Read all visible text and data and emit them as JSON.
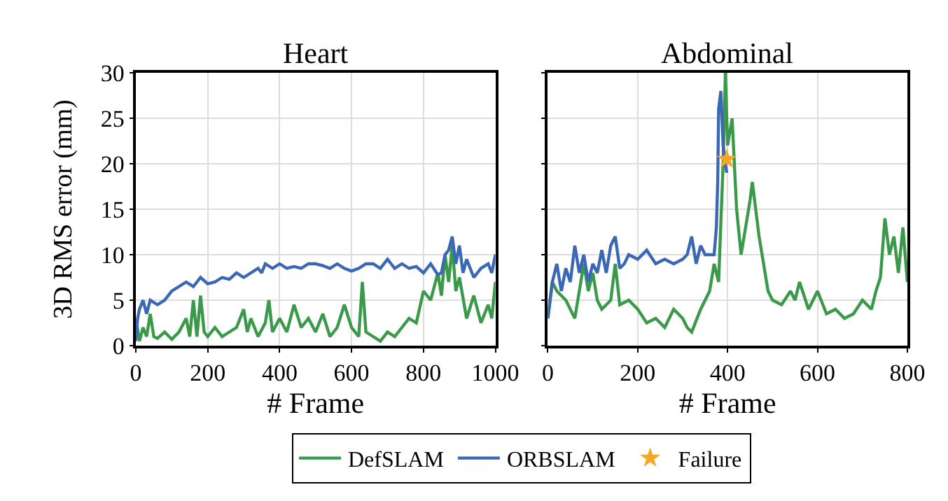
{
  "chart_data": [
    {
      "type": "line",
      "title": "Heart",
      "xlabel": "# Frame",
      "ylabel": "3D RMS error (mm)",
      "xlim": [
        0,
        1000
      ],
      "xticks": [
        0,
        200,
        400,
        600,
        800,
        1000
      ],
      "ylim": [
        0,
        30
      ],
      "yticks": [
        0,
        5,
        10,
        15,
        20,
        25,
        30
      ],
      "grid": true,
      "legend": "bottom",
      "marker": "none",
      "line_style": "solid",
      "series": [
        {
          "name": "DefSLAM",
          "color": "#3a9a4a",
          "x": [
            0,
            10,
            20,
            30,
            40,
            50,
            60,
            80,
            100,
            120,
            140,
            150,
            160,
            170,
            180,
            190,
            200,
            220,
            240,
            260,
            280,
            300,
            310,
            320,
            340,
            360,
            370,
            380,
            400,
            420,
            440,
            460,
            480,
            500,
            520,
            540,
            560,
            580,
            600,
            620,
            630,
            640,
            660,
            680,
            700,
            720,
            740,
            760,
            780,
            800,
            820,
            840,
            850,
            860,
            870,
            880,
            890,
            900,
            920,
            940,
            960,
            980,
            990,
            1000
          ],
          "values": [
            3,
            0.5,
            2,
            1,
            3.5,
            1,
            0.8,
            1.5,
            0.7,
            1.5,
            3,
            1,
            5,
            1,
            5.5,
            1.5,
            1,
            2,
            1,
            1.5,
            2,
            4,
            1.5,
            3,
            1,
            2.5,
            5,
            1.5,
            3,
            1.5,
            4.5,
            2,
            3,
            1.5,
            3.5,
            1,
            2,
            4.5,
            2,
            1,
            7,
            1.5,
            1,
            0.5,
            1.5,
            1,
            2,
            3,
            2.5,
            6,
            5,
            8,
            5.5,
            10,
            7,
            11,
            6,
            7.5,
            3,
            5.5,
            2.5,
            4.5,
            3,
            7
          ]
        },
        {
          "name": "ORBSLAM",
          "color": "#3a68b5",
          "x": [
            0,
            5,
            10,
            20,
            30,
            40,
            60,
            80,
            100,
            120,
            140,
            160,
            180,
            200,
            220,
            240,
            260,
            280,
            300,
            320,
            340,
            350,
            360,
            380,
            400,
            420,
            440,
            460,
            480,
            500,
            520,
            540,
            560,
            580,
            600,
            620,
            640,
            660,
            680,
            700,
            720,
            740,
            760,
            780,
            800,
            820,
            840,
            850,
            860,
            870,
            880,
            890,
            900,
            910,
            920,
            940,
            960,
            980,
            990,
            1000
          ],
          "values": [
            0.5,
            3,
            4,
            5,
            3.5,
            5,
            4.5,
            5,
            6,
            6.5,
            7,
            6.5,
            7.5,
            6.8,
            7,
            7.5,
            7.3,
            8,
            7.5,
            8,
            8.5,
            8,
            9,
            8.5,
            9,
            8.5,
            8.7,
            8.5,
            9,
            9,
            8.8,
            8.5,
            9,
            8.5,
            8.2,
            8.5,
            9,
            9,
            8.5,
            9.5,
            8.5,
            9,
            8.5,
            8.7,
            8,
            9,
            7.8,
            8,
            10,
            10.5,
            12,
            9,
            11,
            8,
            9.5,
            7.5,
            8.5,
            9,
            8,
            10
          ]
        }
      ]
    },
    {
      "type": "line",
      "title": "Abdominal",
      "xlabel": "# Frame",
      "xlim": [
        0,
        800
      ],
      "xticks": [
        0,
        200,
        400,
        600,
        800
      ],
      "ylim": [
        0,
        30
      ],
      "yticks": [
        0,
        5,
        10,
        15,
        20,
        25,
        30
      ],
      "tick_labels": "x",
      "grid": true,
      "legend": "bottom",
      "marker": "none",
      "line_style": "solid",
      "series": [
        {
          "name": "DefSLAM",
          "color": "#3a9a4a",
          "x": [
            0,
            10,
            20,
            40,
            60,
            70,
            80,
            90,
            100,
            110,
            120,
            140,
            150,
            160,
            180,
            200,
            220,
            240,
            260,
            280,
            300,
            310,
            320,
            340,
            360,
            370,
            380,
            390,
            395,
            400,
            410,
            420,
            430,
            440,
            450,
            455,
            460,
            470,
            480,
            490,
            500,
            520,
            540,
            550,
            560,
            580,
            600,
            620,
            640,
            660,
            680,
            700,
            720,
            730,
            740,
            750,
            760,
            770,
            780,
            790,
            800
          ],
          "values": [
            3,
            7,
            6,
            5,
            3,
            6,
            9,
            6,
            8,
            5,
            4,
            5,
            9,
            4.5,
            5,
            4,
            2.5,
            3,
            2,
            4,
            3,
            2,
            1.5,
            4,
            6,
            9,
            7,
            20,
            30,
            22,
            25,
            15,
            10,
            13,
            16,
            18,
            16,
            12,
            9,
            6,
            5,
            4.5,
            6,
            5,
            7,
            4,
            6,
            3.5,
            4,
            3,
            3.5,
            5,
            4,
            6,
            7.5,
            14,
            10,
            12,
            8,
            13,
            7
          ]
        },
        {
          "name": "ORBSLAM",
          "color": "#3a68b5",
          "x": [
            0,
            10,
            20,
            30,
            40,
            50,
            60,
            70,
            80,
            90,
            100,
            110,
            120,
            130,
            140,
            150,
            160,
            170,
            180,
            200,
            210,
            220,
            240,
            260,
            280,
            300,
            310,
            320,
            330,
            340,
            350,
            370,
            375,
            378,
            380,
            385,
            390,
            395,
            398
          ],
          "values": [
            3,
            7,
            9,
            6,
            8.5,
            7,
            11,
            8,
            10,
            7,
            9,
            8,
            10.5,
            8,
            11,
            12,
            8.5,
            9,
            10,
            9.5,
            10,
            10.5,
            9,
            9.5,
            9,
            9.5,
            10,
            12,
            9,
            11,
            10,
            10,
            13,
            18,
            26,
            28,
            22,
            20,
            19
          ]
        },
        {
          "name": "Failure",
          "type": "scatter",
          "marker": "star",
          "color": "#f5a623",
          "x": [
            398
          ],
          "values": [
            20.5
          ]
        }
      ]
    }
  ]
}
